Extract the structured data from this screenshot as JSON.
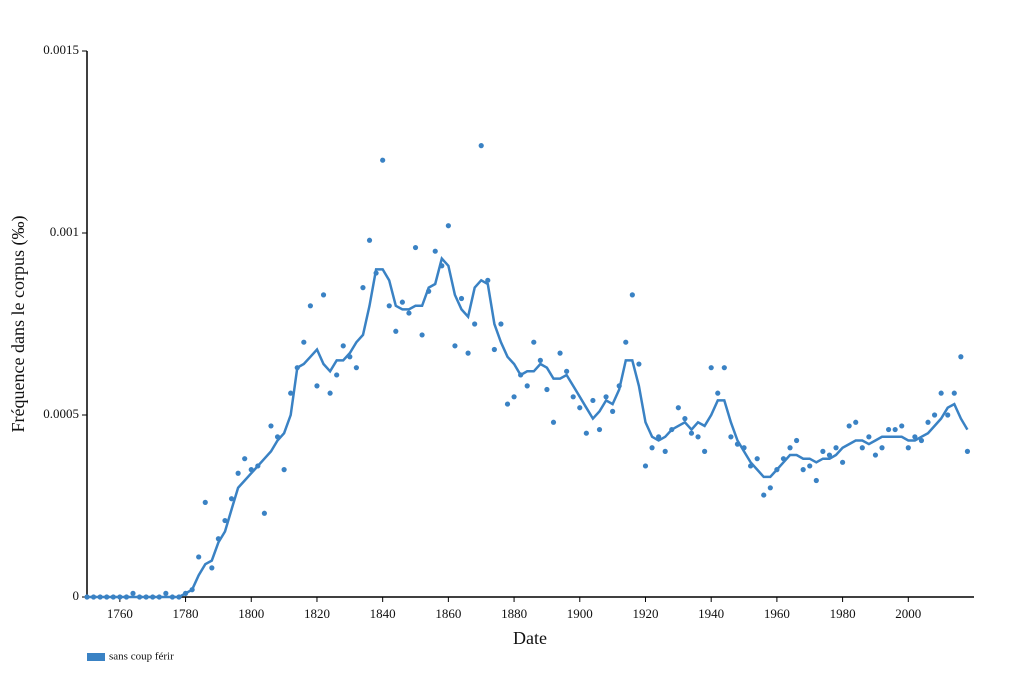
{
  "chart_data": {
    "type": "scatter-line",
    "x_label": "Date",
    "y_label": "Fréquence dans le corpus (‰)",
    "xlim": [
      1750,
      2020
    ],
    "ylim": [
      0,
      0.0015
    ],
    "xticks": [
      1760,
      1780,
      1800,
      1820,
      1840,
      1860,
      1880,
      1900,
      1920,
      1940,
      1960,
      1980,
      2000
    ],
    "yticks": [
      0,
      0.0005,
      0.001,
      0.0015
    ],
    "grid": false,
    "legend": "bottom-left",
    "x": [
      1750,
      1752,
      1754,
      1756,
      1758,
      1760,
      1762,
      1764,
      1766,
      1768,
      1770,
      1772,
      1774,
      1776,
      1778,
      1780,
      1782,
      1784,
      1786,
      1788,
      1790,
      1792,
      1794,
      1796,
      1798,
      1800,
      1802,
      1804,
      1806,
      1808,
      1810,
      1812,
      1814,
      1816,
      1818,
      1820,
      1822,
      1824,
      1826,
      1828,
      1830,
      1832,
      1834,
      1836,
      1838,
      1840,
      1842,
      1844,
      1846,
      1848,
      1850,
      1852,
      1854,
      1856,
      1858,
      1860,
      1862,
      1864,
      1866,
      1868,
      1870,
      1872,
      1874,
      1876,
      1878,
      1880,
      1882,
      1884,
      1886,
      1888,
      1890,
      1892,
      1894,
      1896,
      1898,
      1900,
      1902,
      1904,
      1906,
      1908,
      1910,
      1912,
      1914,
      1916,
      1918,
      1920,
      1922,
      1924,
      1926,
      1928,
      1930,
      1932,
      1934,
      1936,
      1938,
      1940,
      1942,
      1944,
      1946,
      1948,
      1950,
      1952,
      1954,
      1956,
      1958,
      1960,
      1962,
      1964,
      1966,
      1968,
      1970,
      1972,
      1974,
      1976,
      1978,
      1980,
      1982,
      1984,
      1986,
      1988,
      1990,
      1992,
      1994,
      1996,
      1998,
      2000,
      2002,
      2004,
      2006,
      2008,
      2010,
      2012,
      2014,
      2016,
      2018
    ],
    "series": [
      {
        "name": "sans coup férir",
        "color": "#3a82c4",
        "values": [
          0,
          0,
          0,
          0,
          0,
          0,
          0,
          1e-05,
          0,
          0,
          0,
          0,
          1e-05,
          0,
          0,
          1e-05,
          2e-05,
          0.00011,
          0.00026,
          8e-05,
          0.00016,
          0.00021,
          0.00027,
          0.00034,
          0.00038,
          0.00035,
          0.00036,
          0.00023,
          0.00047,
          0.00044,
          0.00035,
          0.00056,
          0.00063,
          0.0007,
          0.0008,
          0.00058,
          0.00083,
          0.00056,
          0.00061,
          0.00069,
          0.00066,
          0.00063,
          0.00085,
          0.00098,
          0.00089,
          0.0012,
          0.0008,
          0.00073,
          0.00081,
          0.00078,
          0.00096,
          0.00072,
          0.00084,
          0.00095,
          0.00091,
          0.00102,
          0.00069,
          0.00082,
          0.00067,
          0.00075,
          0.00124,
          0.00087,
          0.00068,
          0.00075,
          0.00053,
          0.00055,
          0.00061,
          0.00058,
          0.0007,
          0.00065,
          0.00057,
          0.00048,
          0.00067,
          0.00062,
          0.00055,
          0.00052,
          0.00045,
          0.00054,
          0.00046,
          0.00055,
          0.00051,
          0.00058,
          0.0007,
          0.00083,
          0.00064,
          0.00036,
          0.00041,
          0.00044,
          0.0004,
          0.00046,
          0.00052,
          0.00049,
          0.00045,
          0.00044,
          0.0004,
          0.00063,
          0.00056,
          0.00063,
          0.00044,
          0.00042,
          0.00041,
          0.00036,
          0.00038,
          0.00028,
          0.0003,
          0.00035,
          0.00038,
          0.00041,
          0.00043,
          0.00035,
          0.00036,
          0.00032,
          0.0004,
          0.00039,
          0.00041,
          0.00037,
          0.00047,
          0.00048,
          0.00041,
          0.00044,
          0.00039,
          0.00041,
          0.00046,
          0.00046,
          0.00047,
          0.00041,
          0.00044,
          0.00043,
          0.00048,
          0.0005,
          0.00056,
          0.0005,
          0.00056,
          0.00066,
          0.0004
        ],
        "trend": [
          0,
          0,
          0,
          0,
          0,
          0,
          0,
          0,
          0,
          0,
          0,
          0,
          0,
          0,
          0,
          1e-05,
          2e-05,
          6e-05,
          9e-05,
          0.0001,
          0.00015,
          0.00018,
          0.00024,
          0.0003,
          0.00032,
          0.00034,
          0.00036,
          0.00038,
          0.0004,
          0.00043,
          0.00045,
          0.0005,
          0.00063,
          0.00064,
          0.00066,
          0.00068,
          0.00064,
          0.00062,
          0.00065,
          0.00065,
          0.00067,
          0.0007,
          0.00072,
          0.0008,
          0.0009,
          0.0009,
          0.00087,
          0.0008,
          0.00079,
          0.00079,
          0.0008,
          0.0008,
          0.00085,
          0.00086,
          0.00093,
          0.00091,
          0.00083,
          0.00079,
          0.00077,
          0.00085,
          0.00087,
          0.00086,
          0.00075,
          0.0007,
          0.00066,
          0.00064,
          0.00061,
          0.00062,
          0.00062,
          0.00064,
          0.00063,
          0.0006,
          0.0006,
          0.00061,
          0.00058,
          0.00055,
          0.00052,
          0.00049,
          0.00051,
          0.00054,
          0.00053,
          0.00057,
          0.00065,
          0.00065,
          0.00058,
          0.00048,
          0.00044,
          0.00043,
          0.00044,
          0.00046,
          0.00047,
          0.00048,
          0.00046,
          0.00048,
          0.00047,
          0.0005,
          0.00054,
          0.00054,
          0.00048,
          0.00043,
          0.0004,
          0.00037,
          0.00035,
          0.00033,
          0.00033,
          0.00035,
          0.00037,
          0.00039,
          0.00039,
          0.00038,
          0.00038,
          0.00037,
          0.00038,
          0.00038,
          0.00039,
          0.00041,
          0.00042,
          0.00043,
          0.00043,
          0.00042,
          0.00043,
          0.00044,
          0.00044,
          0.00044,
          0.00044,
          0.00043,
          0.00043,
          0.00044,
          0.00045,
          0.00047,
          0.00049,
          0.00052,
          0.00053,
          0.00049,
          0.00046
        ]
      }
    ]
  }
}
